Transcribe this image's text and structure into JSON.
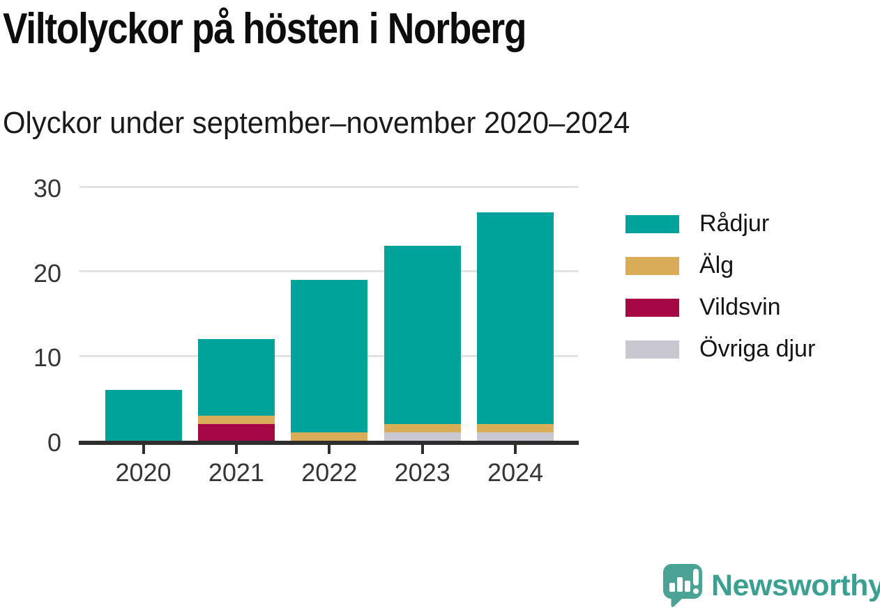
{
  "header": {
    "title": "Viltolyckor på hösten i Norberg",
    "subtitle": "Olyckor under september–november 2020–2024"
  },
  "chart_data": {
    "type": "bar",
    "stacked": true,
    "title": "Viltolyckor på hösten i Norberg",
    "subtitle": "Olyckor under september–november 2020–2024",
    "categories": [
      "2020",
      "2021",
      "2022",
      "2023",
      "2024"
    ],
    "series": [
      {
        "name": "Rådjur",
        "color": "#00a39a",
        "values": [
          6,
          9,
          18,
          21,
          25
        ]
      },
      {
        "name": "Älg",
        "color": "#d9ad58",
        "values": [
          0,
          1,
          1,
          1,
          1
        ]
      },
      {
        "name": "Vildsvin",
        "color": "#a50845",
        "values": [
          0,
          2,
          0,
          0,
          0
        ]
      },
      {
        "name": "Övriga djur",
        "color": "#c9c8d1",
        "values": [
          0,
          0,
          0,
          1,
          1
        ]
      }
    ],
    "stack_order_bottom_to_top": [
      "Övriga djur",
      "Vildsvin",
      "Älg",
      "Rådjur"
    ],
    "totals": [
      6,
      12,
      19,
      23,
      27
    ],
    "xlabel": "",
    "ylabel": "",
    "ylim": [
      0,
      30
    ],
    "yticks": [
      0,
      10,
      20,
      30
    ],
    "grid": true,
    "legend_position": "right",
    "colors": {
      "axis": "#2e2e2e",
      "gridline": "#e2e2e2",
      "tick_text": "#353535"
    }
  },
  "footer": {
    "logo_text": "Newsworthy",
    "logo_icon_color": "#4ba396",
    "logo_text_color": "#3ba092"
  }
}
